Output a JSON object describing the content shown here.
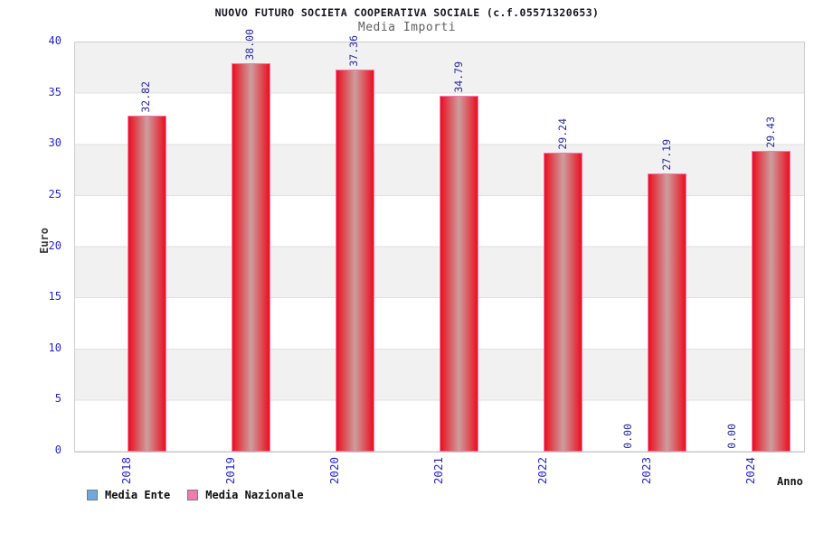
{
  "header": {
    "title": "NUOVO FUTURO SOCIETA COOPERATIVA SOCIALE (c.f.05571320653)",
    "subtitle": "Media Importi"
  },
  "chart_data": {
    "type": "bar",
    "title": "NUOVO FUTURO SOCIETA COOPERATIVA SOCIALE (c.f.05571320653)",
    "subtitle": "Media Importi",
    "xlabel": "Anno",
    "ylabel": "Euro",
    "ylim": [
      0,
      40
    ],
    "ytick_step": 5,
    "yticks": [
      0,
      5,
      10,
      15,
      20,
      25,
      30,
      35,
      40
    ],
    "grid": true,
    "legend_position": "bottom",
    "categories": [
      "2018",
      "2019",
      "2020",
      "2021",
      "2022",
      "2023",
      "2024"
    ],
    "series": [
      {
        "name": "Media Ente",
        "swatch": "#6fa8dc",
        "fill": {
          "edge": "#6fa8dc",
          "mid": null,
          "border": "#7a7a7a"
        },
        "values": [
          null,
          null,
          null,
          null,
          null,
          0.0,
          0.0
        ]
      },
      {
        "name": "Media Nazionale",
        "swatch": "#ee7cae",
        "fill": {
          "edge": "#ea0f1f",
          "mid": "#cd9e9e",
          "border": "#f87ab0"
        },
        "values": [
          32.82,
          38.0,
          37.36,
          34.79,
          29.24,
          27.19,
          29.43
        ]
      }
    ]
  },
  "colors": {
    "title_text": "#15151f",
    "subtitle_text": "#5f5f5f",
    "tick_blue": "#2424cd",
    "value_label_navy": "#28289c",
    "band_gray": "#f1f1f1",
    "gridline": "#e0e0e0",
    "plot_frame": "#cccccc",
    "bar_red_edge": "#ea0f1f",
    "bar_red_mid": "#cd9e9e",
    "bar_pink_border": "#f87ab0",
    "legend_blue": "#6fa8dc",
    "legend_pink": "#ee7cae",
    "background": "#ffffff"
  }
}
